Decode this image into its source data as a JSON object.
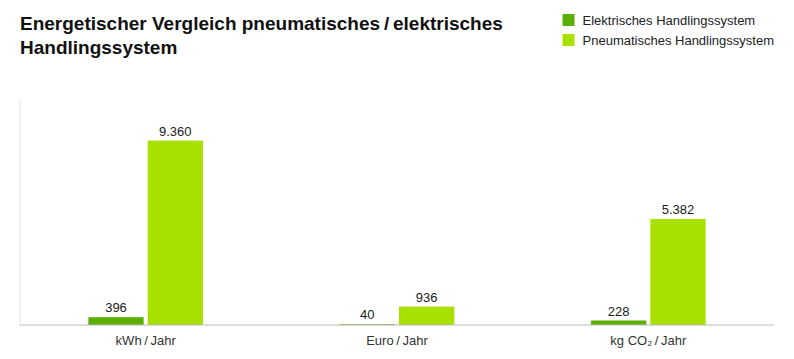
{
  "chart_data": {
    "type": "bar",
    "title": "Energetischer Vergleich pneumatisches / elektrisches\nHandlingssystem",
    "categories": [
      "kWh / Jahr",
      "Euro / Jahr",
      "kg CO₂ / Jahr"
    ],
    "series": [
      {
        "name": "Elektrisches Handlingssystem",
        "color": "#5aaf00",
        "values": [
          396,
          40,
          228
        ]
      },
      {
        "name": "Pneumatisches Handlingssystem",
        "color": "#a8e000",
        "values": [
          9360,
          936,
          5382
        ],
        "value_labels": [
          "9.360",
          "936",
          "5.382"
        ]
      }
    ],
    "ylim": [
      0,
      11419.2
    ],
    "data_labels": true,
    "tick_labels": "x",
    "grid": false,
    "legend": "upper right"
  }
}
